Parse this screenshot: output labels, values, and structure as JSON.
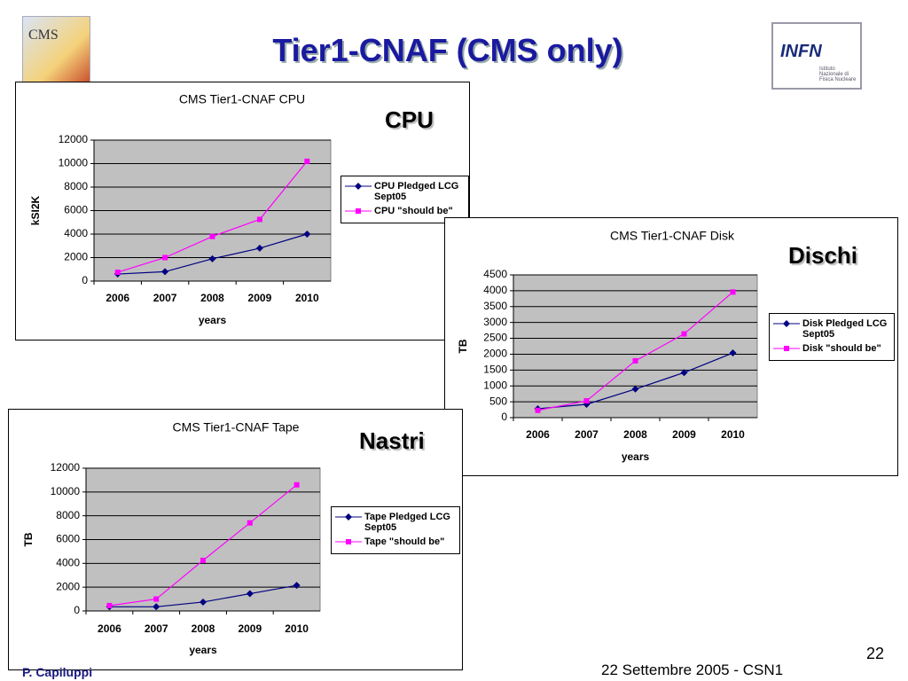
{
  "title": "Tier1-CNAF (CMS only)",
  "cms_logo": "CMS",
  "infn_logo": {
    "name": "INFN",
    "subtitle": "Istituto Nazionale di Fisica Nucleare"
  },
  "footer": {
    "author": "P. Capiluppi",
    "date": "22 Settembre 2005 - CSN1",
    "page": "22"
  },
  "chart_data": [
    {
      "type": "line",
      "title": "CMS Tier1-CNAF CPU",
      "annotation": "CPU",
      "x_label": "years",
      "y_label": "kSI2K",
      "categories": [
        "2006",
        "2007",
        "2008",
        "2009",
        "2010"
      ],
      "series": [
        {
          "name": "CPU Pledged LCG Sept05",
          "color": "#000080",
          "marker": "diamond",
          "values": [
            600,
            800,
            1900,
            2800,
            4000
          ]
        },
        {
          "name": "CPU \"should be\"",
          "color": "#ff00ff",
          "marker": "square",
          "values": [
            750,
            2000,
            3800,
            5250,
            10200
          ]
        }
      ],
      "ylim": [
        0,
        12000
      ],
      "yticks": [
        0,
        2000,
        4000,
        6000,
        8000,
        10000,
        12000
      ],
      "grid": true
    },
    {
      "type": "line",
      "title": "CMS Tier1-CNAF Disk",
      "annotation": "Dischi",
      "x_label": "years",
      "y_label": "TB",
      "categories": [
        "2006",
        "2007",
        "2008",
        "2009",
        "2010"
      ],
      "series": [
        {
          "name": "Disk Pledged LCG Sept05",
          "color": "#000080",
          "marker": "diamond",
          "values": [
            280,
            420,
            900,
            1420,
            2040
          ]
        },
        {
          "name": "Disk \"should be\"",
          "color": "#ff00ff",
          "marker": "square",
          "values": [
            230,
            530,
            1790,
            2640,
            3960
          ]
        }
      ],
      "ylim": [
        0,
        4500
      ],
      "yticks": [
        0,
        500,
        1000,
        1500,
        2000,
        2500,
        3000,
        3500,
        4000,
        4500
      ],
      "grid": true
    },
    {
      "type": "line",
      "title": "CMS Tier1-CNAF Tape",
      "annotation": "Nastri",
      "x_label": "years",
      "y_label": "TB",
      "categories": [
        "2006",
        "2007",
        "2008",
        "2009",
        "2010"
      ],
      "series": [
        {
          "name": "Tape Pledged LCG Sept05",
          "color": "#000080",
          "marker": "diamond",
          "values": [
            350,
            350,
            750,
            1450,
            2150
          ]
        },
        {
          "name": "Tape \"should be\"",
          "color": "#ff00ff",
          "marker": "square",
          "values": [
            450,
            1000,
            4250,
            7400,
            10600
          ]
        }
      ],
      "ylim": [
        0,
        12000
      ],
      "yticks": [
        0,
        2000,
        4000,
        6000,
        8000,
        10000,
        12000
      ],
      "grid": true
    }
  ]
}
